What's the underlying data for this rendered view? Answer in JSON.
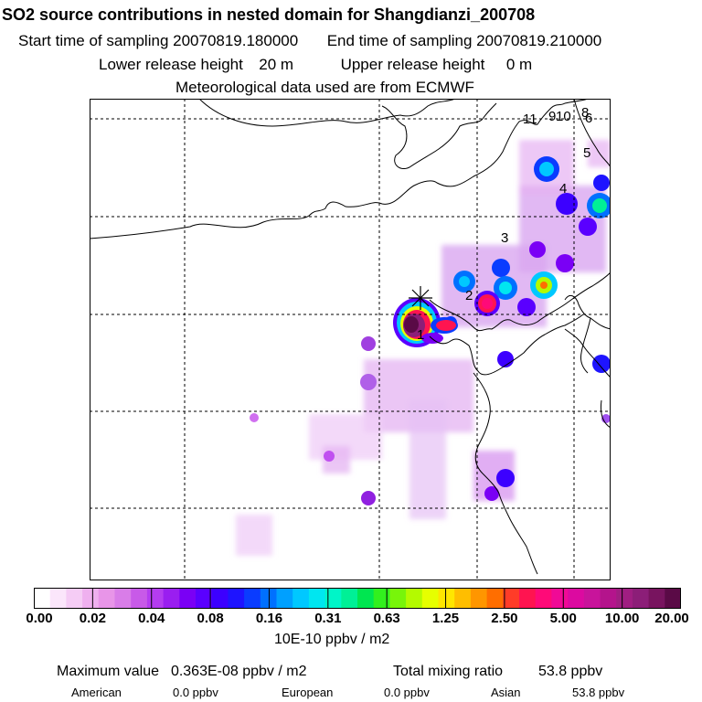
{
  "header": {
    "title": "SO2 source contributions in nested domain for Shangdianzi_200708",
    "start_label": "Start time of sampling 20070819.180000",
    "end_label": "End time of sampling 20070819.210000",
    "lower_label": "Lower release height",
    "lower_value": "20 m",
    "upper_label": "Upper release height",
    "upper_value": "0 m",
    "met_label": "Meteorological data used are from ECMWF"
  },
  "map": {
    "source_labels": [
      "1",
      "2",
      "3",
      "4",
      "5",
      "6",
      "8",
      "9",
      "10",
      "11"
    ],
    "station_marker": "station-star"
  },
  "legend": {
    "ticks": [
      "0.00",
      "0.02",
      "0.04",
      "0.08",
      "0.16",
      "0.31",
      "0.63",
      "1.25",
      "2.50",
      "5.00",
      "10.00",
      "20.00"
    ],
    "colors": [
      "#ffffff",
      "#fbe6fb",
      "#f5ccf5",
      "#efb0ef",
      "#e895e8",
      "#d97de8",
      "#c85ae8",
      "#b43cf0",
      "#9a1ef0",
      "#7a00f5",
      "#5a00ff",
      "#3c00ff",
      "#1e14ff",
      "#0a3cff",
      "#0070ff",
      "#00a0ff",
      "#00c8ff",
      "#00e6f0",
      "#00f5c8",
      "#00f096",
      "#00e650",
      "#32f01e",
      "#78f50a",
      "#b4fa00",
      "#e6ff00",
      "#ffe600",
      "#ffbe00",
      "#ff9600",
      "#ff6e00",
      "#ff3c28",
      "#ff1450",
      "#ff0a78",
      "#f00a96",
      "#dc0aa0",
      "#c8149b",
      "#b4148c",
      "#a01e82",
      "#8c1e78",
      "#78145f",
      "#5a0a46"
    ],
    "units": "10E-10 ppbv / m2"
  },
  "footer": {
    "max_label": "Maximum value",
    "max_value": "0.363E-08 ppbv / m2",
    "total_label": "Total mixing ratio",
    "total_value": "53.8 ppbv",
    "regions": [
      {
        "name": "American",
        "value": "0.0 ppbv"
      },
      {
        "name": "European",
        "value": "0.0 ppbv"
      },
      {
        "name": "Asian",
        "value": "53.8 ppbv"
      }
    ]
  }
}
